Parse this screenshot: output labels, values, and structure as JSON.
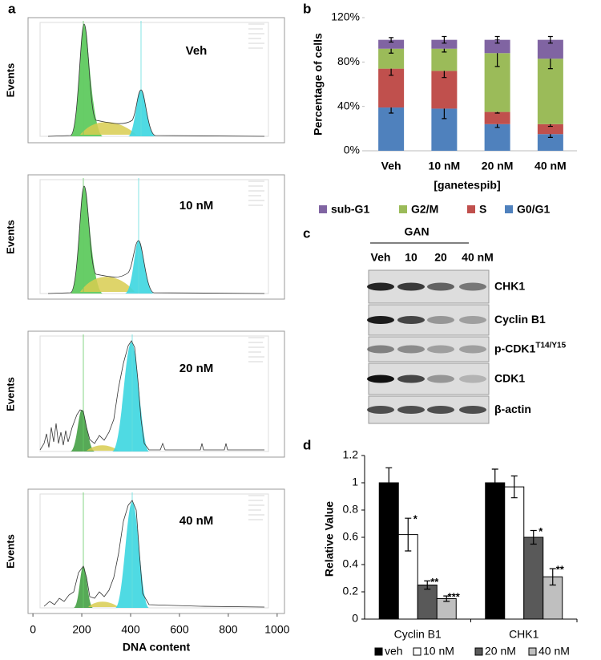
{
  "chart_data": [
    {
      "panel": "a",
      "type": "flow-histogram",
      "ylabel": "Events",
      "xlabel": "DNA content",
      "samples": [
        "Veh",
        "10 nM",
        "20 nM",
        "40 nM"
      ],
      "xlim": [
        -20,
        1030
      ],
      "xticks": [
        0,
        200,
        400,
        600,
        800,
        1000
      ]
    },
    {
      "panel": "b",
      "type": "stacked-bar",
      "ylabel": "Percentage of cells",
      "xlabel": "[ganetespib]",
      "categories": [
        "Veh",
        "10 nM",
        "20 nM",
        "40 nM"
      ],
      "series": [
        {
          "name": "G0/G1",
          "color": "#4f81bd",
          "values": [
            39,
            38,
            24,
            15
          ],
          "errors": [
            5,
            9,
            3,
            3
          ]
        },
        {
          "name": "S",
          "color": "#c0504d",
          "values": [
            35,
            34,
            11,
            9
          ],
          "errors": [
            6,
            6,
            1,
            2
          ]
        },
        {
          "name": "G2/M",
          "color": "#9bbb59",
          "values": [
            18,
            20,
            53,
            59
          ],
          "errors": [
            4,
            3,
            12,
            9
          ]
        },
        {
          "name": "sub-G1",
          "color": "#8064a2",
          "values": [
            8,
            8,
            12,
            17
          ],
          "errors": [
            2,
            3,
            3,
            3
          ]
        }
      ],
      "ylim": [
        0,
        120
      ],
      "yticks": [
        {
          "value": 0,
          "label": "0%"
        },
        {
          "value": 40,
          "label": "40%"
        },
        {
          "value": 80,
          "label": "80%"
        },
        {
          "value": 120,
          "label": "120%"
        }
      ]
    },
    {
      "panel": "d",
      "type": "grouped-bar",
      "ylabel": "Relative Value",
      "categories": [
        "Cyclin B1",
        "CHK1"
      ],
      "series": [
        {
          "name": "veh",
          "color": "#000000",
          "values": [
            1,
            1
          ],
          "errors": [
            0.11,
            0.1
          ],
          "significance": [
            null,
            null
          ]
        },
        {
          "name": "10 nM",
          "color": "#ffffff",
          "values": [
            0.62,
            0.97
          ],
          "errors": [
            0.12,
            0.08
          ],
          "significance": [
            "*",
            null
          ]
        },
        {
          "name": "20 nM",
          "color": "#595959",
          "values": [
            0.25,
            0.6
          ],
          "errors": [
            0.03,
            0.05
          ],
          "significance": [
            "**",
            "*"
          ]
        },
        {
          "name": "40 nM",
          "color": "#bfbfbf",
          "values": [
            0.15,
            0.31
          ],
          "errors": [
            0.02,
            0.06
          ],
          "significance": [
            "***",
            "**"
          ]
        }
      ],
      "ylim": [
        0,
        1.2
      ],
      "yticks": [
        0,
        0.2,
        0.4,
        0.6,
        0.8,
        1,
        1.2
      ]
    }
  ],
  "blot": {
    "panel": "c",
    "group": "GAN",
    "lanes": [
      "Veh",
      "10",
      "20",
      "40 nM"
    ],
    "rows": [
      {
        "label": "CHK1"
      },
      {
        "label": "Cyclin B1"
      },
      {
        "label": "p-CDK1",
        "sup": "T14/Y15"
      },
      {
        "label": "CDK1"
      },
      {
        "label": "β-actin"
      }
    ]
  }
}
